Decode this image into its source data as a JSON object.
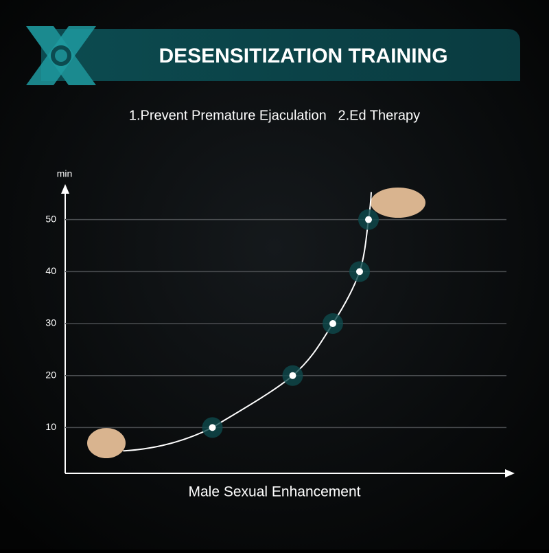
{
  "chart_data": {
    "type": "line",
    "title": "DESENSITIZATION TRAINING",
    "subtitle": "1.Prevent Premature Ejaculation   2.Ed Therapy",
    "y_label": "min",
    "x_label": "Male Sexual Enhancement",
    "x": [
      33,
      51,
      60,
      66,
      68
    ],
    "series": [
      {
        "color": "#ffffff",
        "values": [
          10,
          20,
          30,
          40,
          50
        ]
      }
    ],
    "xlim": [
      0,
      100
    ],
    "ylim": [
      1.2,
      56.3
    ],
    "yticks": [
      10,
      20,
      30,
      40,
      50
    ],
    "grid": true
  }
}
